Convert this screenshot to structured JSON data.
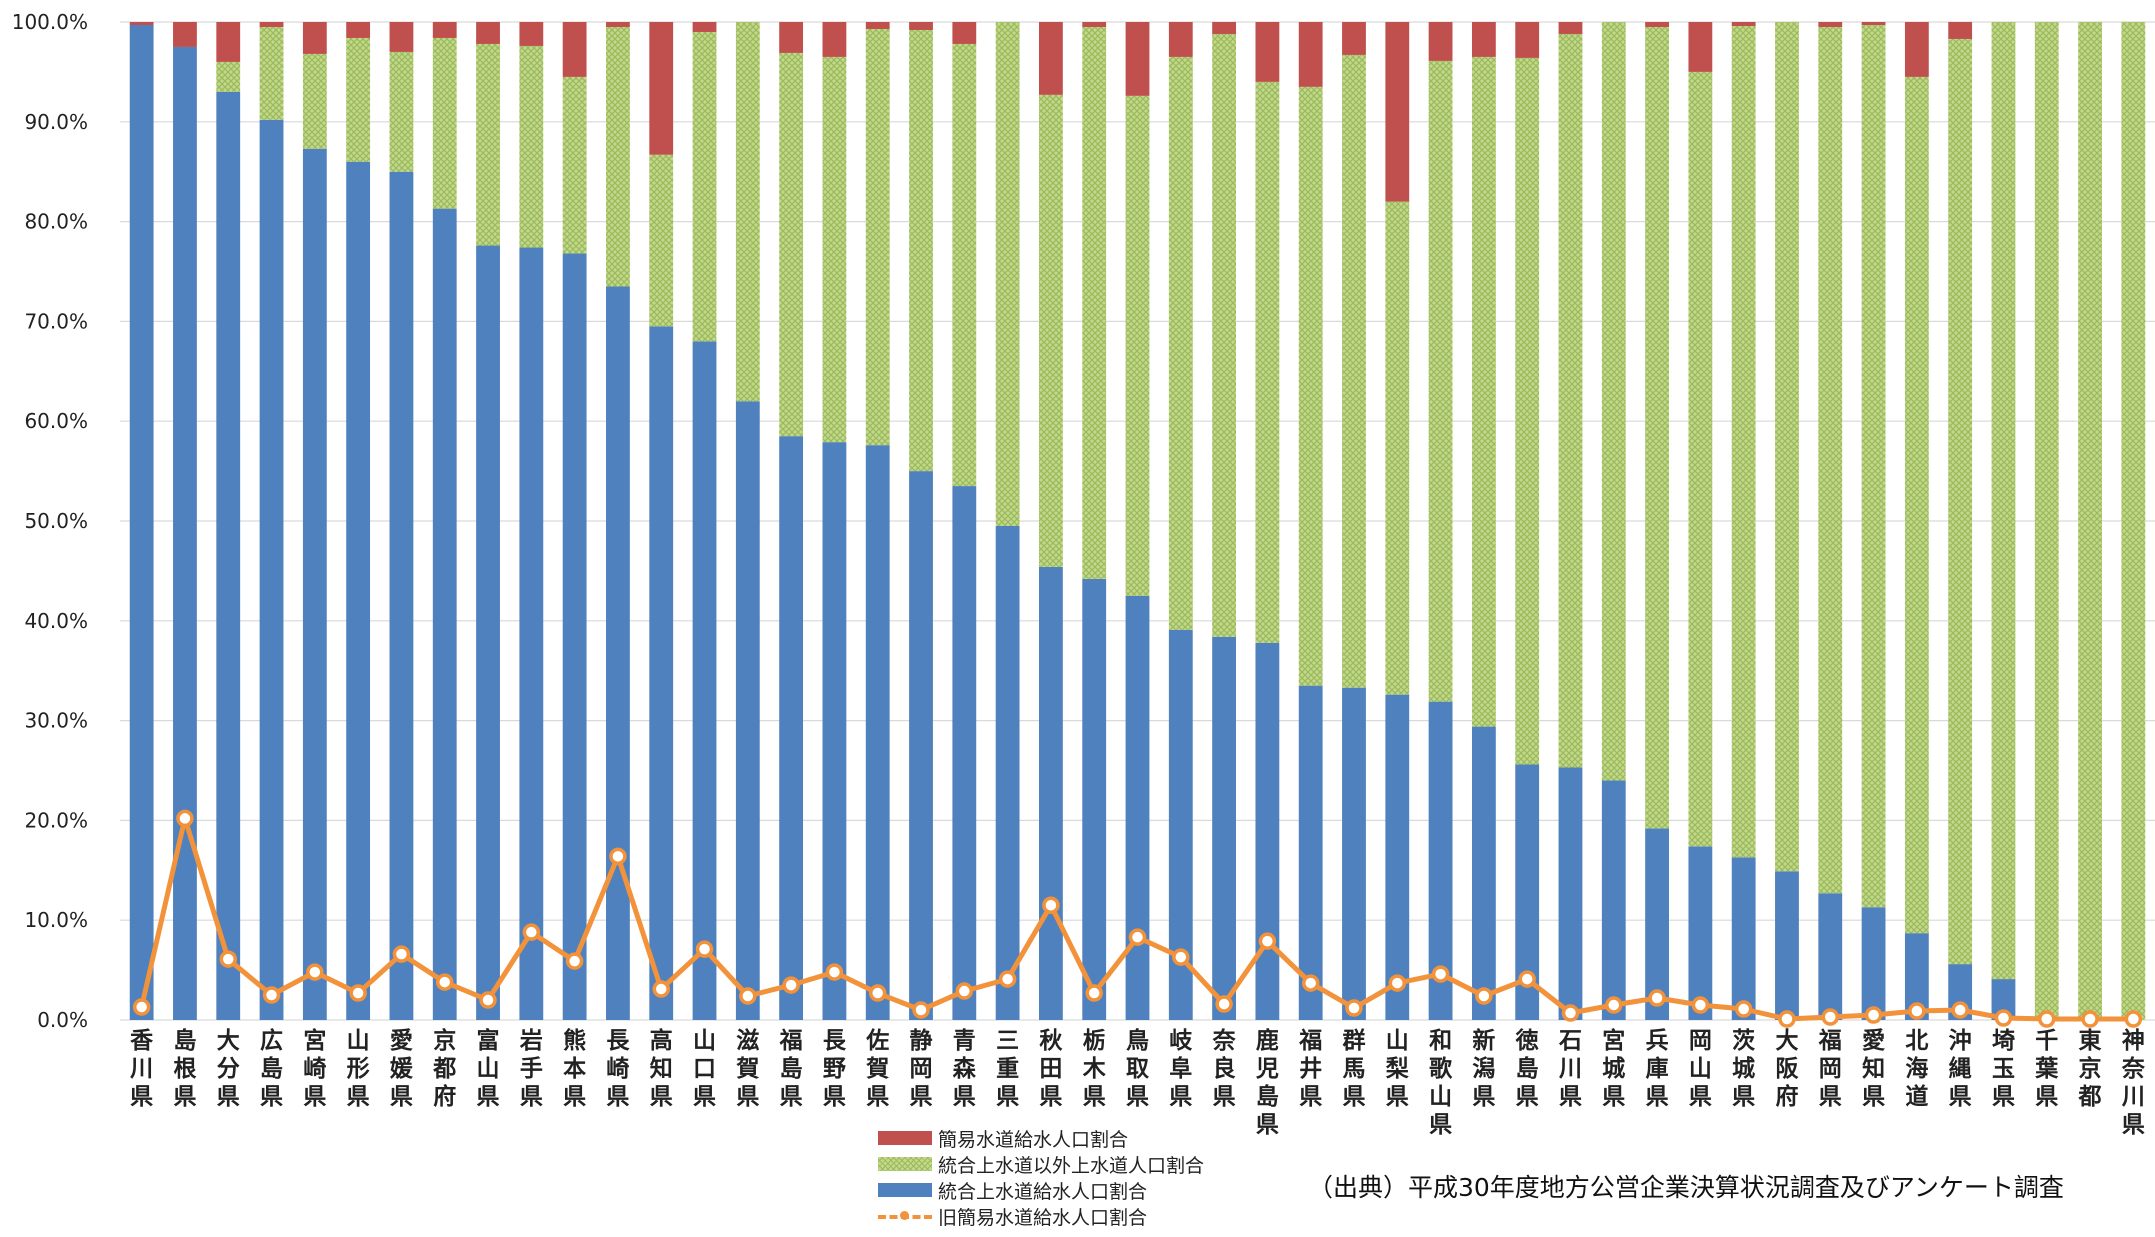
{
  "chart_data": {
    "type": "bar",
    "stacked": true,
    "categories": [
      "香川県",
      "島根県",
      "大分県",
      "広島県",
      "宮崎県",
      "山形県",
      "愛媛県",
      "京都府",
      "富山県",
      "岩手県",
      "熊本県",
      "長崎県",
      "高知県",
      "山口県",
      "滋賀県",
      "福島県",
      "長野県",
      "佐賀県",
      "静岡県",
      "青森県",
      "三重県",
      "秋田県",
      "栃木県",
      "鳥取県",
      "岐阜県",
      "奈良県",
      "鹿児島県",
      "福井県",
      "群馬県",
      "山梨県",
      "和歌山県",
      "新潟県",
      "徳島県",
      "石川県",
      "宮城県",
      "兵庫県",
      "岡山県",
      "茨城県",
      "大阪府",
      "福岡県",
      "愛知県",
      "北海道",
      "沖縄県",
      "埼玉県",
      "千葉県",
      "東京都",
      "神奈川県"
    ],
    "series": [
      {
        "name": "統合上水道給水人口割合",
        "kind": "bar",
        "color": "#4E81BD",
        "values": [
          99.7,
          97.5,
          93.0,
          90.2,
          87.3,
          86.0,
          85.0,
          81.3,
          77.6,
          77.4,
          76.8,
          73.5,
          69.5,
          68.0,
          62.0,
          58.5,
          57.9,
          57.6,
          55.0,
          53.5,
          49.5,
          45.4,
          44.2,
          42.5,
          39.1,
          38.4,
          37.8,
          33.5,
          33.3,
          32.6,
          31.9,
          29.4,
          25.6,
          25.3,
          24.0,
          19.2,
          17.4,
          16.3,
          14.9,
          12.7,
          11.3,
          8.7,
          5.6,
          4.1,
          0.0,
          0.0,
          0.0
        ]
      },
      {
        "name": "統合上水道以外上水道人口割合",
        "kind": "bar",
        "color": "#9BBB59",
        "pattern": "crosshatch",
        "values": [
          0.0,
          0.0,
          3.0,
          9.3,
          9.5,
          12.4,
          12.0,
          17.1,
          20.2,
          20.2,
          17.7,
          26.0,
          17.2,
          31.0,
          38.0,
          38.4,
          38.6,
          41.7,
          44.2,
          44.3,
          50.5,
          47.3,
          55.3,
          50.1,
          57.4,
          60.4,
          56.2,
          60.0,
          63.4,
          49.4,
          64.2,
          67.1,
          70.8,
          73.5,
          76.0,
          80.3,
          77.6,
          83.3,
          85.1,
          86.8,
          88.4,
          85.8,
          92.7,
          95.9,
          100.0,
          100.0,
          100.0
        ]
      },
      {
        "name": "簡易水道給水人口割合",
        "kind": "bar",
        "color": "#C0504D",
        "values": [
          0.3,
          2.5,
          4.0,
          0.5,
          3.2,
          1.6,
          3.0,
          1.6,
          2.2,
          2.4,
          5.5,
          0.5,
          13.3,
          1.0,
          0.0,
          3.1,
          3.5,
          0.7,
          0.8,
          2.2,
          0.0,
          7.3,
          0.5,
          7.4,
          3.5,
          1.2,
          6.0,
          6.5,
          3.3,
          18.0,
          3.9,
          3.5,
          3.6,
          1.2,
          0.0,
          0.5,
          5.0,
          0.4,
          0.0,
          0.5,
          0.3,
          5.5,
          1.7,
          0.0,
          0.0,
          0.0,
          0.0
        ]
      },
      {
        "name": "旧簡易水道給水人口割合",
        "kind": "line",
        "color": "#F2923A",
        "values": [
          1.3,
          20.2,
          6.1,
          2.5,
          4.8,
          2.7,
          6.6,
          3.8,
          2.0,
          8.8,
          5.9,
          16.4,
          3.1,
          7.1,
          2.4,
          3.5,
          4.8,
          2.7,
          1.0,
          2.9,
          4.1,
          11.5,
          2.7,
          8.3,
          6.3,
          1.6,
          7.9,
          3.7,
          1.2,
          3.7,
          4.6,
          2.4,
          4.1,
          0.7,
          1.5,
          2.2,
          1.5,
          1.1,
          0.1,
          0.3,
          0.5,
          0.9,
          1.0,
          0.2,
          0.1,
          0.1,
          0.1
        ]
      }
    ],
    "y_ticks": [
      "0.0%",
      "10.0%",
      "20.0%",
      "30.0%",
      "40.0%",
      "50.0%",
      "60.0%",
      "70.0%",
      "80.0%",
      "90.0%",
      "100.0%"
    ],
    "ylim": [
      0,
      100
    ],
    "grid": true,
    "legend_position": "bottom-center"
  },
  "legend": [
    {
      "label": "簡易水道給水人口割合",
      "kind": "bar",
      "color": "#C0504D"
    },
    {
      "label": "統合上水道以外上水道人口割合",
      "kind": "bar-pattern",
      "color": "#9BBB59"
    },
    {
      "label": "統合上水道給水人口割合",
      "kind": "bar",
      "color": "#4E81BD"
    },
    {
      "label": "旧簡易水道給水人口割合",
      "kind": "line",
      "color": "#F2923A"
    }
  ],
  "source_note": "（出典）平成30年度地方公営企業決算状況調査及びアンケート調査"
}
